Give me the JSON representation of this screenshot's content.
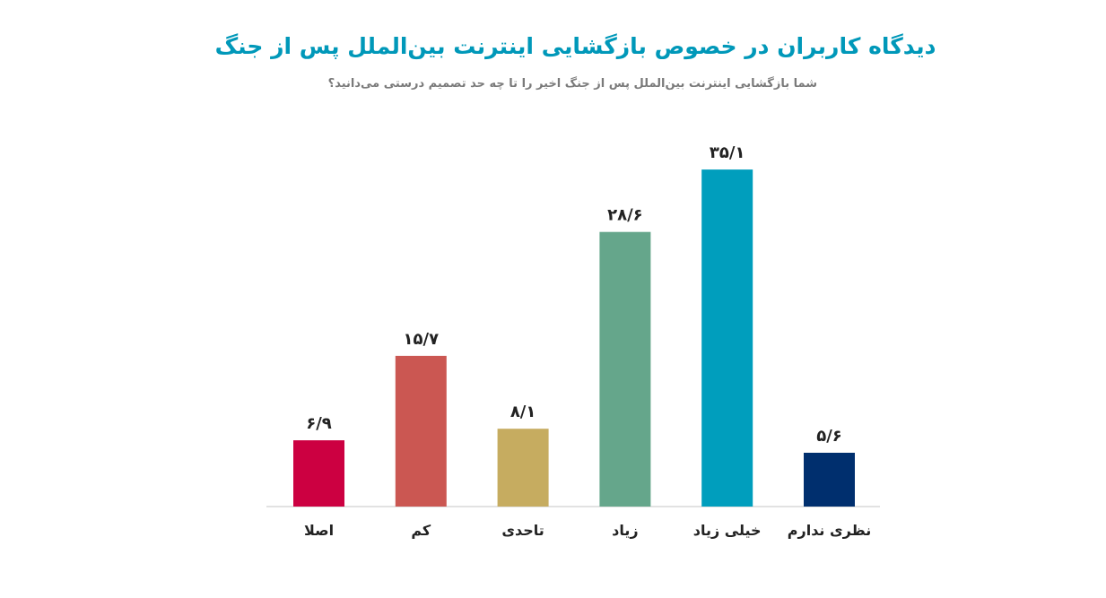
{
  "chart_data": {
    "type": "bar",
    "title": "دیدگاه کاربران در خصوص بازگشایی اینترنت بین‌الملل پس از جنگ",
    "subtitle": "شما بازگشایی اینترنت بین‌الملل پس از جنگ اخیر را تا چه حد تصمیم درستی می‌دانید؟",
    "xlabel": "",
    "ylabel": "",
    "ylim": [
      0,
      40
    ],
    "grid": false,
    "categories": [
      "اصلا",
      "کم",
      "تاحدی",
      "زیاد",
      "خیلی زیاد",
      "نظری ندارم"
    ],
    "values": [
      6.9,
      15.7,
      8.1,
      28.6,
      35.1,
      5.6
    ],
    "value_labels": [
      "۶/۹",
      "۱۵/۷",
      "۸/۱",
      "۲۸/۶",
      "۳۵/۱",
      "۵/۶"
    ],
    "colors": [
      "#cc0041",
      "#cb5752",
      "#c6ac60",
      "#65a68b",
      "#009ebd",
      "#002f6e"
    ]
  }
}
